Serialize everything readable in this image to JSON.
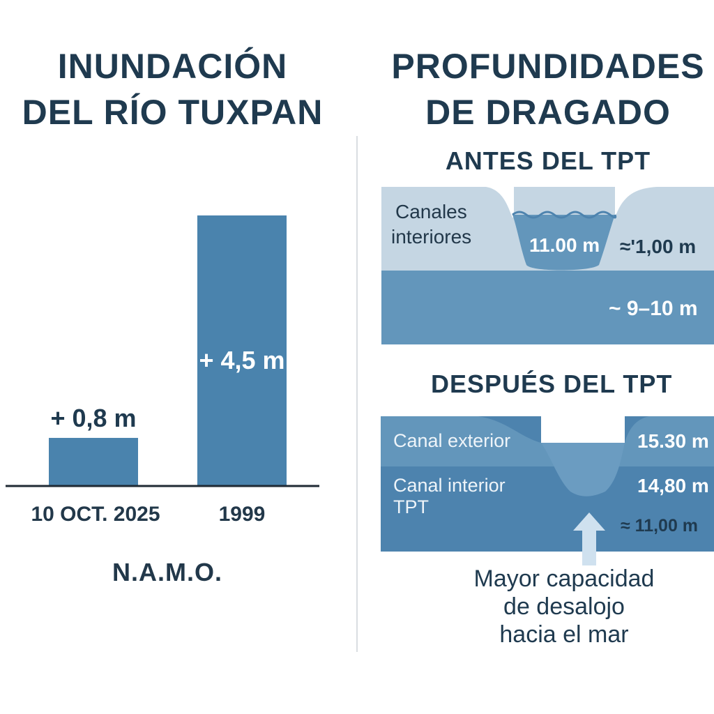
{
  "left": {
    "title_line1": "INUNDACIÓN",
    "title_line2": "DEL RÍO TUXPAN",
    "footer": "N.A.M.O."
  },
  "right": {
    "title_line1": "PROFUNDIDADES",
    "title_line2": "DE DRAGADO",
    "before": {
      "heading": "ANTES DEL TPT",
      "label_line1": "Canales",
      "label_line2": "interiores",
      "channel_depth": "11.00 m",
      "side_depth": "≈'1,00 m",
      "base_depth": "~ 9–10 m"
    },
    "after": {
      "heading": "DESPUÉS DEL TPT",
      "outer_label": "Canal exterior",
      "inner_label_line1": "Canal interior",
      "inner_label_line2": "TPT",
      "outer_depth": "15.30 m",
      "inner_depth": "14,80 m",
      "approx_depth": "≈ 11,00 m",
      "note_line1": "Mayor capacidad",
      "note_line2": "de desalojo",
      "note_line3": "hacia el mar"
    }
  },
  "colors": {
    "bar": "#4a83ad",
    "title": "#1f3a4f",
    "light_water": "#c5d6e3",
    "mid_water": "#6396bb",
    "deep_water": "#4d83ae",
    "arrow": "#cfe1ef"
  },
  "chart_data": {
    "type": "bar",
    "categories": [
      "10 OCT. 2025",
      "1999"
    ],
    "values": [
      0.8,
      4.5
    ],
    "value_labels": [
      "+ 0,8 m",
      "+ 4,5 m"
    ],
    "title": "INUNDACIÓN DEL RÍO TUXPAN",
    "xlabel": "N.A.M.O.",
    "ylabel": "",
    "ylim": [
      0,
      5.3
    ],
    "unit": "m",
    "grid": false
  }
}
